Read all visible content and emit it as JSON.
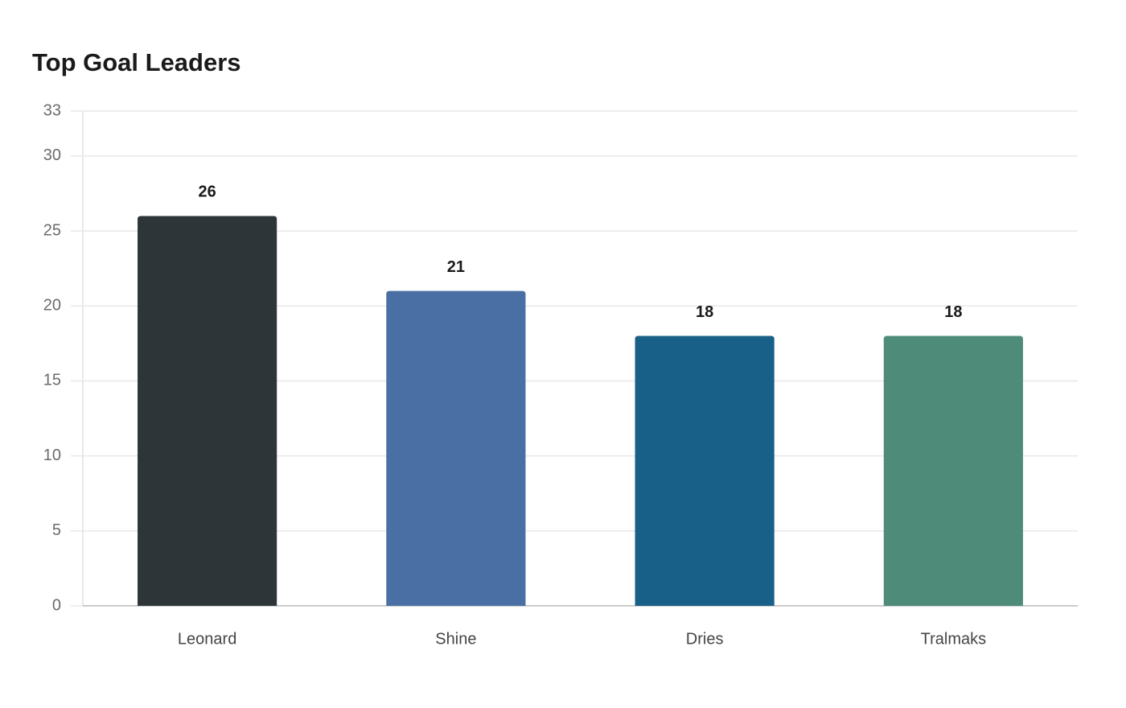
{
  "chart_data": {
    "type": "bar",
    "title": "Top Goal Leaders",
    "categories": [
      "Leonard",
      "Shine",
      "Dries",
      "Tralmaks"
    ],
    "values": [
      26,
      21,
      18,
      18
    ],
    "colors": [
      "#2d3538",
      "#4a6fa5",
      "#186088",
      "#4e8c79"
    ],
    "ylim": [
      0,
      33
    ],
    "yticks": [
      0,
      5,
      10,
      15,
      20,
      25,
      30,
      33
    ],
    "grid": true
  }
}
